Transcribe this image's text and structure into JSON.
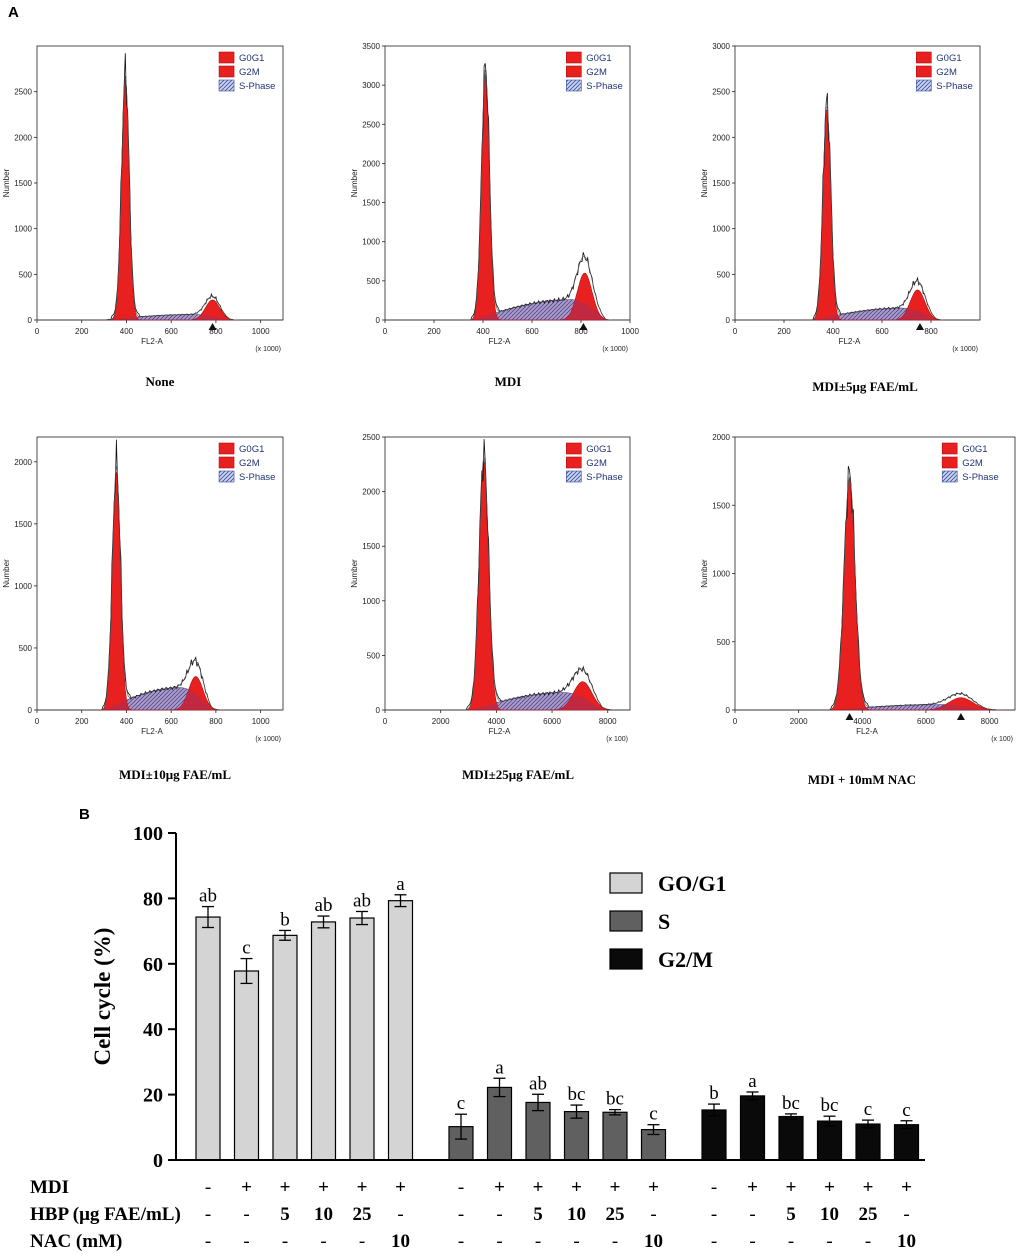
{
  "panel_a": {
    "label": "A",
    "legend": [
      "G0G1",
      "G2M",
      "S-Phase"
    ],
    "histograms": [
      {
        "caption": "None",
        "ylabel": "Number",
        "xlabel": "FL2-A",
        "xunit": "(x 1000)",
        "xmin": 0,
        "xmax": 1100,
        "xticks": [
          0,
          200,
          400,
          600,
          800,
          1000
        ],
        "ymax": 3000,
        "yticks": [
          0,
          500,
          1000,
          1500,
          2000,
          2500
        ],
        "g1": {
          "mu": 395,
          "sigma": 17,
          "h": 2650
        },
        "g2": {
          "mu": 785,
          "sigma": 32,
          "h": 220
        },
        "s": {
          "from": 300,
          "to": 860,
          "h": 60,
          "peak": 700
        },
        "arrows": [
          785
        ]
      },
      {
        "caption": "MDI",
        "ylabel": "Number",
        "xlabel": "FL2-A",
        "xunit": "(x 1000)",
        "xmin": 0,
        "xmax": 1000,
        "xticks": [
          0,
          200,
          400,
          600,
          800,
          1000
        ],
        "ymax": 3500,
        "yticks": [
          0,
          500,
          1000,
          1500,
          2000,
          2500,
          3000,
          3500
        ],
        "g1": {
          "mu": 410,
          "sigma": 16,
          "h": 3150
        },
        "g2": {
          "mu": 815,
          "sigma": 30,
          "h": 600
        },
        "s": {
          "from": 360,
          "to": 900,
          "h": 260,
          "peak": 760
        },
        "arrows": [
          810
        ]
      },
      {
        "caption": "MDI±5μg FAE/mL",
        "ylabel": "Number",
        "xlabel": "FL2-A",
        "xunit": "(x 1000)",
        "xmin": 0,
        "xmax": 1000,
        "xticks": [
          0,
          200,
          400,
          600,
          800
        ],
        "ymax": 3000,
        "yticks": [
          0,
          500,
          1000,
          1500,
          2000,
          2500,
          3000
        ],
        "g1": {
          "mu": 375,
          "sigma": 16,
          "h": 2320
        },
        "g2": {
          "mu": 745,
          "sigma": 30,
          "h": 330
        },
        "s": {
          "from": 320,
          "to": 820,
          "h": 130,
          "peak": 680
        },
        "arrows": [
          755
        ]
      },
      {
        "caption": "MDI±10μg FAE/mL",
        "ylabel": "Number",
        "xlabel": "FL2-A",
        "xunit": "(x 1000)",
        "xmin": 0,
        "xmax": 1100,
        "xticks": [
          0,
          200,
          400,
          600,
          800,
          1000
        ],
        "ymax": 2200,
        "yticks": [
          0,
          500,
          1000,
          1500,
          2000
        ],
        "g1": {
          "mu": 355,
          "sigma": 18,
          "h": 1920
        },
        "g2": {
          "mu": 710,
          "sigma": 32,
          "h": 270
        },
        "s": {
          "from": 300,
          "to": 780,
          "h": 180,
          "peak": 640
        },
        "arrows": []
      },
      {
        "caption": "MDI±25μg FAE/mL",
        "ylabel": "Number",
        "xlabel": "FL2-A",
        "xunit": "(x 100)",
        "xmin": 0,
        "xmax": 8800,
        "xticks": [
          0,
          2000,
          4000,
          6000,
          8000
        ],
        "ymax": 2500,
        "yticks": [
          0,
          500,
          1000,
          1500,
          2000,
          2500
        ],
        "g1": {
          "mu": 3550,
          "sigma": 170,
          "h": 2280
        },
        "g2": {
          "mu": 7100,
          "sigma": 330,
          "h": 260
        },
        "s": {
          "from": 3100,
          "to": 7800,
          "h": 160,
          "peak": 6400
        },
        "arrows": []
      },
      {
        "caption": "MDI + 10mM NAC",
        "ylabel": "Number",
        "xlabel": "FL2-A",
        "xunit": "(x 100)",
        "xmin": 0,
        "xmax": 8800,
        "xticks": [
          0,
          2000,
          4000,
          6000,
          8000
        ],
        "ymax": 2000,
        "yticks": [
          0,
          500,
          1000,
          1500,
          2000
        ],
        "g1": {
          "mu": 3600,
          "sigma": 170,
          "h": 1700
        },
        "g2": {
          "mu": 7100,
          "sigma": 380,
          "h": 90
        },
        "s": {
          "from": 3100,
          "to": 7900,
          "h": 40,
          "peak": 6400
        },
        "arrows": [
          3600,
          7100
        ]
      }
    ]
  },
  "panel_b": {
    "label": "B"
  },
  "chart_data": {
    "type": "bar",
    "ylabel": "Cell cycle (%)",
    "ylim": [
      0,
      100
    ],
    "yticks": [
      0,
      20,
      40,
      60,
      80,
      100
    ],
    "legend": [
      "GO/G1",
      "S",
      "G2/M"
    ],
    "groups": [
      {
        "name": "GO/G1",
        "color": "#d4d4d4",
        "values": [
          74.3,
          57.8,
          68.7,
          72.8,
          74.0,
          79.3
        ],
        "errors": [
          3.2,
          3.8,
          1.5,
          1.8,
          2.0,
          1.8
        ],
        "letters": [
          "ab",
          "c",
          "b",
          "ab",
          "ab",
          "a"
        ]
      },
      {
        "name": "S",
        "color": "#606060",
        "values": [
          10.2,
          22.2,
          17.6,
          14.8,
          14.6,
          9.3
        ],
        "errors": [
          3.8,
          2.8,
          2.5,
          2.0,
          0.8,
          1.5
        ],
        "letters": [
          "c",
          "a",
          "ab",
          "bc",
          "bc",
          "c"
        ]
      },
      {
        "name": "G2/M",
        "color": "#0a0a0a",
        "values": [
          15.3,
          19.6,
          13.3,
          11.9,
          11.0,
          10.8
        ],
        "errors": [
          1.8,
          1.2,
          0.8,
          1.5,
          1.2,
          1.2
        ],
        "letters": [
          "b",
          "a",
          "bc",
          "bc",
          "c",
          "c"
        ]
      }
    ],
    "conditions": [
      {
        "label": "MDI",
        "values": [
          "-",
          "+",
          "+",
          "+",
          "+",
          "+"
        ]
      },
      {
        "label": "HBP (μg FAE/mL)",
        "values": [
          "-",
          "-",
          "5",
          "10",
          "25",
          "-"
        ]
      },
      {
        "label": "NAC (mM)",
        "values": [
          "-",
          "-",
          "-",
          "-",
          "-",
          "10"
        ]
      }
    ]
  }
}
